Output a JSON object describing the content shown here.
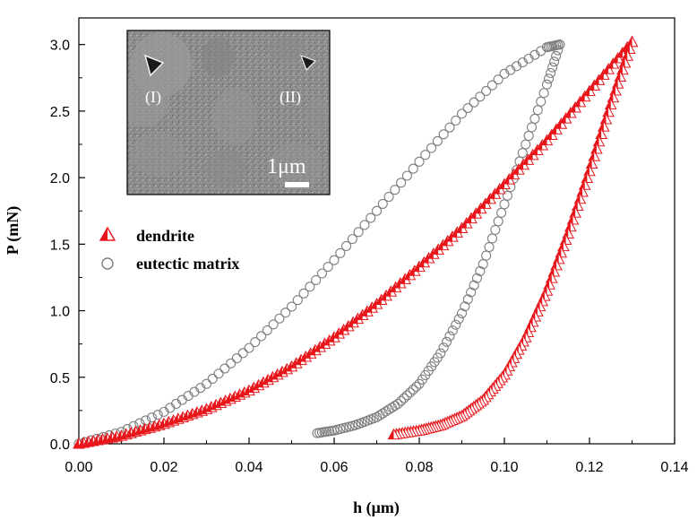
{
  "chart_data": {
    "type": "scatter",
    "xlabel": "h (μm)",
    "ylabel": "P (mN)",
    "xlim": [
      0,
      0.14
    ],
    "ylim": [
      0,
      3.2
    ],
    "xticks": [
      "0.00",
      "0.02",
      "0.04",
      "0.06",
      "0.08",
      "0.10",
      "0.12",
      "0.14"
    ],
    "yticks": [
      "0.0",
      "0.5",
      "1.0",
      "1.5",
      "2.0",
      "2.5",
      "3.0"
    ],
    "grid": false,
    "legend_position": "middle-left",
    "series": [
      {
        "name": "dendrite",
        "marker": "half-filled-triangle",
        "color": "#e8161b",
        "loading": [
          [
            0.0,
            0.0
          ],
          [
            0.01,
            0.06
          ],
          [
            0.02,
            0.15
          ],
          [
            0.03,
            0.26
          ],
          [
            0.04,
            0.4
          ],
          [
            0.05,
            0.58
          ],
          [
            0.06,
            0.8
          ],
          [
            0.07,
            1.05
          ],
          [
            0.08,
            1.33
          ],
          [
            0.09,
            1.62
          ],
          [
            0.1,
            1.95
          ],
          [
            0.11,
            2.28
          ],
          [
            0.12,
            2.65
          ],
          [
            0.13,
            3.02
          ]
        ],
        "unloading": [
          [
            0.13,
            3.02
          ],
          [
            0.125,
            2.55
          ],
          [
            0.12,
            2.05
          ],
          [
            0.115,
            1.58
          ],
          [
            0.11,
            1.15
          ],
          [
            0.105,
            0.8
          ],
          [
            0.1,
            0.52
          ],
          [
            0.095,
            0.33
          ],
          [
            0.09,
            0.21
          ],
          [
            0.085,
            0.14
          ],
          [
            0.08,
            0.1
          ],
          [
            0.074,
            0.07
          ]
        ]
      },
      {
        "name": "eutectic matrix",
        "marker": "open-circle",
        "color": "#7f7f7f",
        "loading": [
          [
            0.0,
            0.0
          ],
          [
            0.01,
            0.09
          ],
          [
            0.02,
            0.24
          ],
          [
            0.03,
            0.45
          ],
          [
            0.04,
            0.72
          ],
          [
            0.05,
            1.03
          ],
          [
            0.06,
            1.38
          ],
          [
            0.07,
            1.75
          ],
          [
            0.08,
            2.12
          ],
          [
            0.09,
            2.48
          ],
          [
            0.1,
            2.78
          ],
          [
            0.11,
            2.98
          ],
          [
            0.113,
            3.0
          ]
        ],
        "unloading": [
          [
            0.113,
            3.0
          ],
          [
            0.11,
            2.7
          ],
          [
            0.105,
            2.25
          ],
          [
            0.1,
            1.8
          ],
          [
            0.095,
            1.35
          ],
          [
            0.09,
            0.98
          ],
          [
            0.085,
            0.68
          ],
          [
            0.08,
            0.45
          ],
          [
            0.075,
            0.3
          ],
          [
            0.07,
            0.2
          ],
          [
            0.065,
            0.14
          ],
          [
            0.06,
            0.1
          ],
          [
            0.056,
            0.08
          ]
        ]
      }
    ]
  },
  "inset": {
    "labels": [
      "(I)",
      "(II)"
    ],
    "scale_label": "1μm"
  }
}
